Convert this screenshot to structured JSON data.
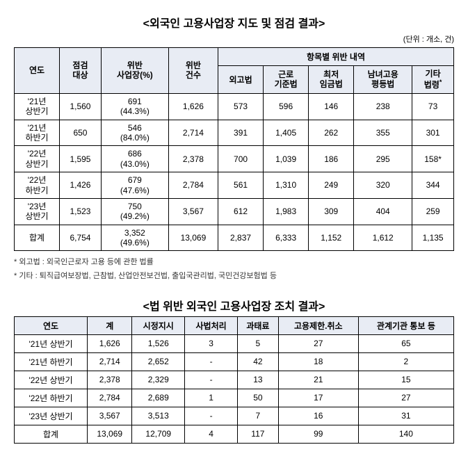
{
  "table1": {
    "title": "<외국인 고용사업장 지도 및 점검 결과>",
    "unit": "(단위 : 개소, 건)",
    "headers": {
      "year": "연도",
      "target": "점검\n대상",
      "violating": "위반\n사업장(%)",
      "count": "위반\n건수",
      "breakdown_group": "항목별 위반 내역",
      "b1": "외고법",
      "b2": "근로\n기준법",
      "b3": "최저\n임금법",
      "b4": "남녀고용\n평등법",
      "b5": "기타\n법령"
    },
    "rows": [
      {
        "year": "'21년\n상반기",
        "target": "1,560",
        "violating": "691\n(44.3%)",
        "count": "1,626",
        "b1": "573",
        "b2": "596",
        "b3": "146",
        "b4": "238",
        "b5": "73"
      },
      {
        "year": "'21년\n하반기",
        "target": "650",
        "violating": "546\n(84.0%)",
        "count": "2,714",
        "b1": "391",
        "b2": "1,405",
        "b3": "262",
        "b4": "355",
        "b5": "301"
      },
      {
        "year": "'22년\n상반기",
        "target": "1,595",
        "violating": "686\n(43.0%)",
        "count": "2,378",
        "b1": "700",
        "b2": "1,039",
        "b3": "186",
        "b4": "295",
        "b5": "158*"
      },
      {
        "year": "'22년\n하반기",
        "target": "1,426",
        "violating": "679\n(47.6%)",
        "count": "2,784",
        "b1": "561",
        "b2": "1,310",
        "b3": "249",
        "b4": "320",
        "b5": "344"
      },
      {
        "year": "'23년\n상반기",
        "target": "1,523",
        "violating": "750\n(49.2%)",
        "count": "3,567",
        "b1": "612",
        "b2": "1,983",
        "b3": "309",
        "b4": "404",
        "b5": "259"
      },
      {
        "year": "합계",
        "target": "6,754",
        "violating": "3,352\n(49.6%)",
        "count": "13,069",
        "b1": "2,837",
        "b2": "6,333",
        "b3": "1,152",
        "b4": "1,612",
        "b5": "1,135"
      }
    ],
    "notes": [
      "* 외고법 : 외국인근로자 고용 등에 관한 법률",
      "* 기타 : 퇴직급여보장법, 근참법, 산업안전보건법, 출입국관리법, 국민건강보험법 등"
    ]
  },
  "table2": {
    "title": "<법 위반 외국인 고용사업장 조치 결과>",
    "headers": {
      "year": "연도",
      "total": "계",
      "c1": "시정지시",
      "c2": "사법처리",
      "c3": "과태료",
      "c4": "고용제한.취소",
      "c5": "관계기관 통보 등"
    },
    "rows": [
      {
        "year": "'21년 상반기",
        "total": "1,626",
        "c1": "1,526",
        "c2": "3",
        "c3": "5",
        "c4": "27",
        "c5": "65"
      },
      {
        "year": "'21년 하반기",
        "total": "2,714",
        "c1": "2,652",
        "c2": "-",
        "c3": "42",
        "c4": "18",
        "c5": "2"
      },
      {
        "year": "'22년 상반기",
        "total": "2,378",
        "c1": "2,329",
        "c2": "-",
        "c3": "13",
        "c4": "21",
        "c5": "15"
      },
      {
        "year": "'22년 하반기",
        "total": "2,784",
        "c1": "2,689",
        "c2": "1",
        "c3": "50",
        "c4": "17",
        "c5": "27"
      },
      {
        "year": "'23년 상반기",
        "total": "3,567",
        "c1": "3,513",
        "c2": "-",
        "c3": "7",
        "c4": "16",
        "c5": "31"
      },
      {
        "year": "합계",
        "total": "13,069",
        "c1": "12,709",
        "c2": "4",
        "c3": "117",
        "c4": "99",
        "c5": "140"
      }
    ]
  }
}
